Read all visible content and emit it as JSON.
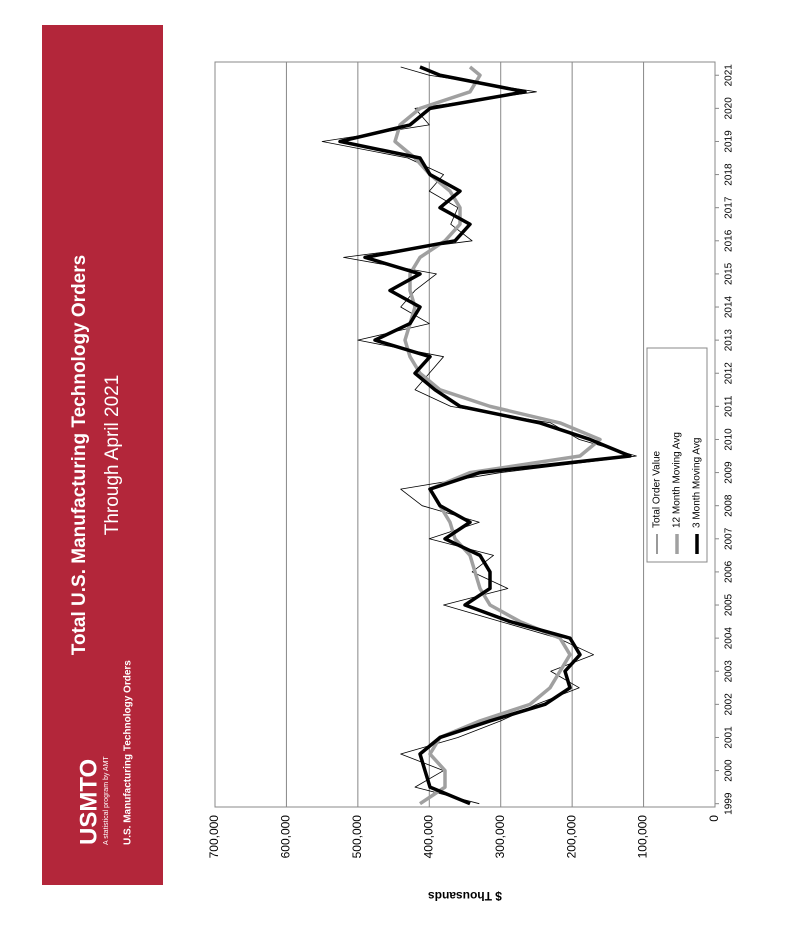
{
  "banner": {
    "title": "Total U.S. Manufacturing Technology Orders",
    "subtitle": "Through April 2021",
    "logo": "USMTO",
    "tagline": "A statistical program by AMT",
    "program": "U.S. Manufacturing Technology Orders"
  },
  "chart_data": {
    "type": "line",
    "y_label": "$ Thousands",
    "x": [
      1999.0,
      1999.5,
      2000.0,
      2000.5,
      2001.0,
      2001.5,
      2002.0,
      2002.5,
      2003.0,
      2003.5,
      2004.0,
      2004.5,
      2005.0,
      2005.5,
      2006.0,
      2006.5,
      2007.0,
      2007.5,
      2008.0,
      2008.5,
      2009.0,
      2009.5,
      2010.0,
      2010.5,
      2011.0,
      2011.5,
      2012.0,
      2012.5,
      2013.0,
      2013.5,
      2014.0,
      2014.5,
      2015.0,
      2015.5,
      2016.0,
      2016.5,
      2017.0,
      2017.5,
      2018.0,
      2018.5,
      2019.0,
      2019.5,
      2020.0,
      2020.5,
      2021.0,
      2021.25
    ],
    "series": [
      {
        "name": "Total Order Value",
        "color": "#000000",
        "values": [
          330000,
          420000,
          380000,
          440000,
          360000,
          300000,
          250000,
          190000,
          230000,
          170000,
          220000,
          300000,
          380000,
          290000,
          340000,
          310000,
          400000,
          330000,
          410000,
          440000,
          300000,
          110000,
          190000,
          230000,
          370000,
          420000,
          400000,
          380000,
          500000,
          400000,
          440000,
          420000,
          390000,
          520000,
          340000,
          370000,
          360000,
          400000,
          380000,
          430000,
          550000,
          400000,
          420000,
          250000,
          400000,
          440000
        ]
      },
      {
        "name": "12 Month Moving Avg",
        "color": "#a0a0a0",
        "values": [
          413000,
          378000,
          378000,
          399000,
          385000,
          329000,
          259000,
          231000,
          217000,
          203000,
          217000,
          273000,
          315000,
          329000,
          336000,
          343000,
          364000,
          371000,
          385000,
          399000,
          343000,
          189000,
          161000,
          217000,
          315000,
          385000,
          413000,
          427000,
          434000,
          427000,
          420000,
          427000,
          427000,
          413000,
          378000,
          357000,
          357000,
          371000,
          399000,
          420000,
          448000,
          441000,
          413000,
          343000,
          329000,
          343000
        ]
      },
      {
        "name": "3 Month Moving Avg",
        "color": "#000000",
        "values": [
          343000,
          399000,
          406000,
          413000,
          385000,
          315000,
          238000,
          203000,
          210000,
          189000,
          203000,
          287000,
          350000,
          315000,
          315000,
          329000,
          378000,
          343000,
          385000,
          399000,
          329000,
          119000,
          175000,
          245000,
          357000,
          392000,
          420000,
          399000,
          476000,
          427000,
          413000,
          455000,
          413000,
          490000,
          364000,
          343000,
          385000,
          357000,
          399000,
          413000,
          525000,
          427000,
          399000,
          266000,
          385000,
          413000
        ]
      }
    ],
    "xlim": [
      1998.9,
      2021.4
    ],
    "xticks": [
      1999,
      2000,
      2001,
      2002,
      2003,
      2004,
      2005,
      2006,
      2007,
      2008,
      2009,
      2010,
      2011,
      2012,
      2013,
      2014,
      2015,
      2016,
      2017,
      2018,
      2019,
      2020,
      2021
    ],
    "ylim": [
      0,
      700000
    ],
    "yticks": [
      0,
      {
        "value": 100000,
        "label": "100,000"
      },
      {
        "value": 200000,
        "label": "200,000"
      },
      {
        "value": 300000,
        "label": "300,000"
      },
      {
        "value": 400000,
        "label": "400,000"
      },
      {
        "value": 500000,
        "label": "500,000"
      },
      {
        "value": 600000,
        "label": "600,000"
      },
      {
        "value": 700000,
        "label": "700,000"
      }
    ],
    "grid": true
  }
}
